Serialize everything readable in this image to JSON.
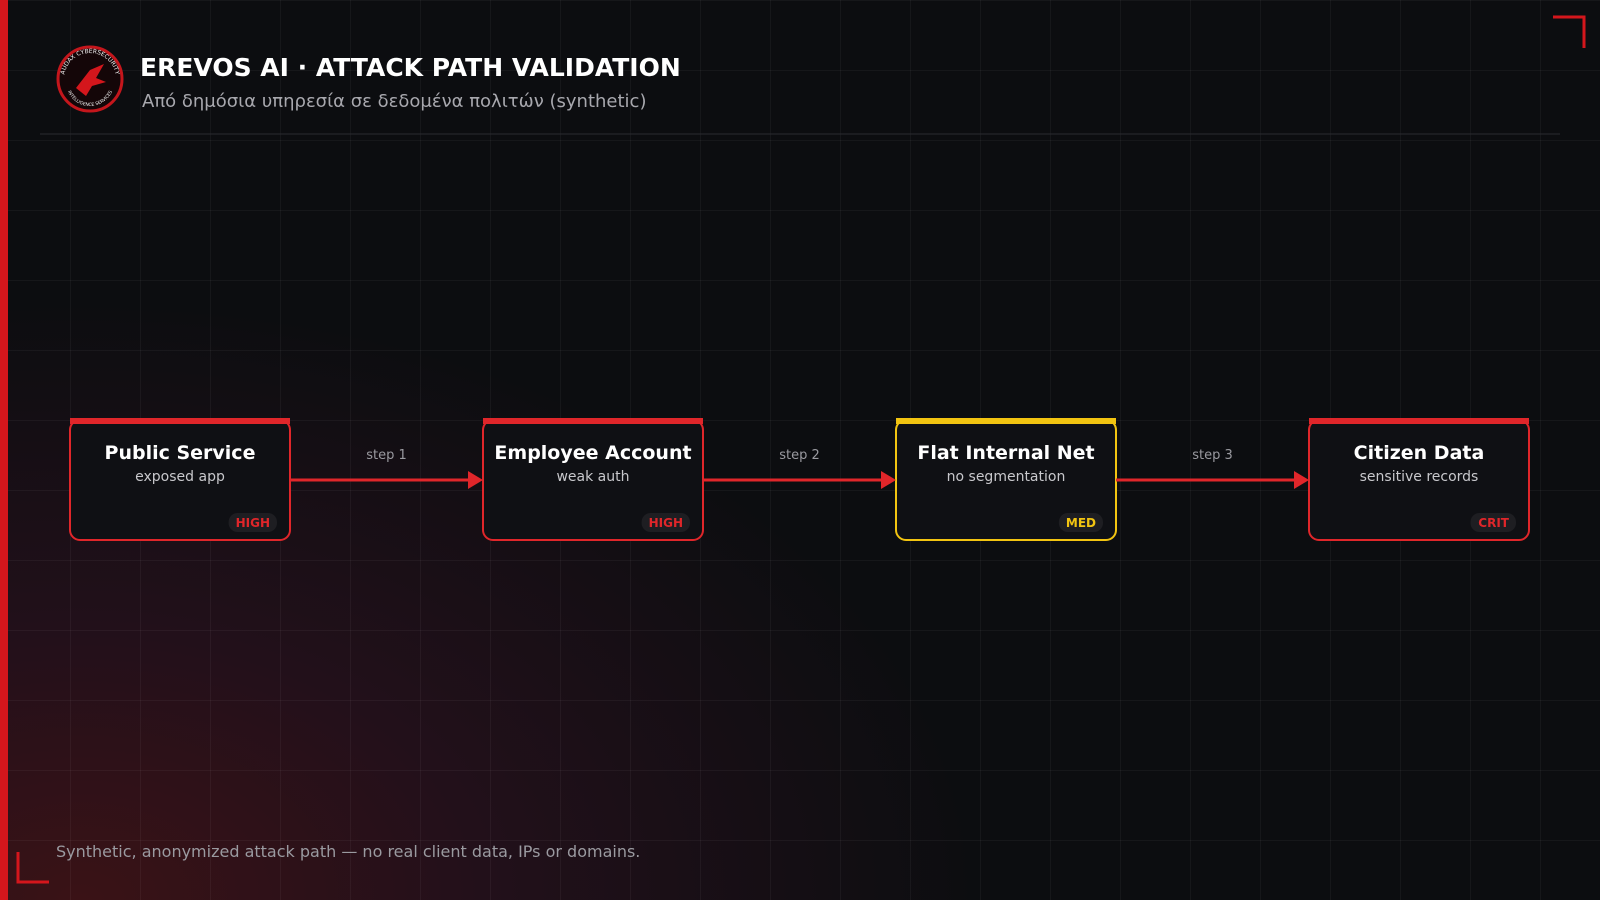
{
  "header": {
    "title": "EREVOS AI · ATTACK PATH VALIDATION",
    "subtitle": "Από δημόσια υπηρεσία σε δεδομένα πολιτών (synthetic)"
  },
  "logo": {
    "top_text": "AUDAX CYBERSECURITY",
    "bottom_text": "INTELLIGENCE SERVICES"
  },
  "nodes": [
    {
      "label": "Public Service",
      "sublabel": "exposed app",
      "severity": "HIGH",
      "color": "#e0262a"
    },
    {
      "label": "Employee Account",
      "sublabel": "weak auth",
      "severity": "HIGH",
      "color": "#e0262a"
    },
    {
      "label": "Flat Internal Net",
      "sublabel": "no segmentation",
      "severity": "MED",
      "color": "#f2c411"
    },
    {
      "label": "Citizen Data",
      "sublabel": "sensitive records",
      "severity": "CRIT",
      "color": "#e0262a"
    }
  ],
  "edges": [
    {
      "label": "step 1"
    },
    {
      "label": "step 2"
    },
    {
      "label": "step 3"
    }
  ],
  "footer": {
    "note": "Synthetic, anonymized attack path — no real client data, IPs or domains."
  }
}
